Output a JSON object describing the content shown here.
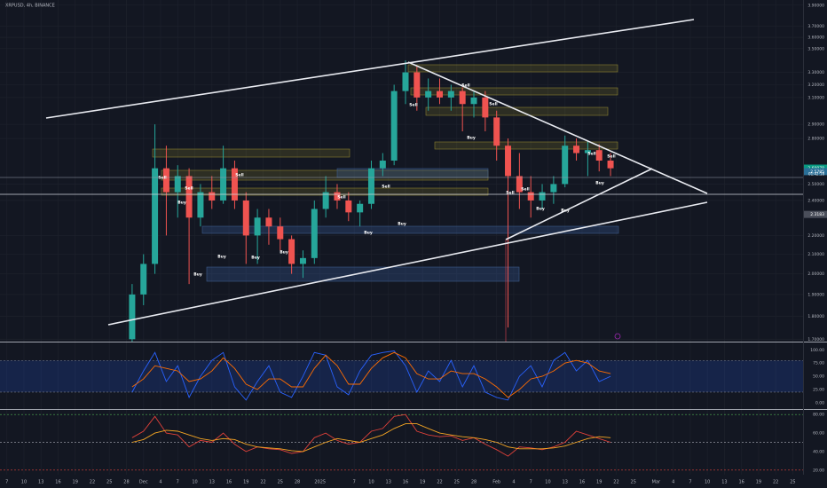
{
  "chart_data": [
    {
      "type": "candlestick",
      "title": "XRPUSD, 4h, BINANCE",
      "categories": [
        null,
        null,
        null,
        null,
        null,
        null,
        null,
        null,
        null,
        null,
        null,
        null,
        null,
        null,
        null,
        null,
        null,
        null,
        null,
        null,
        null,
        null,
        null,
        null,
        null,
        null,
        null,
        null,
        null,
        null,
        null,
        null,
        null,
        null,
        null,
        null,
        null,
        null,
        null,
        null,
        null,
        null,
        null
      ],
      "open": [
        1.7,
        1.9,
        2.05,
        2.6,
        2.45,
        2.55,
        2.3,
        2.45,
        2.4,
        2.6,
        2.4,
        2.2,
        2.3,
        2.25,
        2.18,
        2.05,
        2.08,
        2.35,
        2.45,
        2.4,
        2.33,
        2.38,
        2.6,
        2.65,
        3.15,
        3.3,
        3.1,
        3.15,
        3.1,
        3.15,
        3.05,
        3.1,
        2.95,
        2.75,
        2.55,
        2.45,
        2.4,
        2.45,
        2.5,
        2.75,
        2.7,
        2.72,
        2.65
      ],
      "high": [
        1.95,
        2.1,
        2.9,
        2.75,
        2.62,
        2.6,
        2.5,
        2.55,
        2.75,
        2.65,
        2.45,
        2.35,
        2.35,
        2.3,
        2.2,
        2.12,
        2.4,
        2.55,
        2.5,
        2.45,
        2.4,
        2.65,
        2.7,
        3.2,
        3.4,
        3.35,
        3.25,
        3.25,
        3.2,
        3.18,
        3.15,
        3.15,
        3.0,
        2.8,
        2.7,
        2.55,
        2.5,
        2.55,
        2.82,
        2.8,
        2.78,
        2.76,
        2.7
      ],
      "low": [
        1.65,
        1.85,
        2.0,
        2.2,
        2.3,
        1.95,
        2.25,
        2.35,
        2.38,
        2.35,
        2.05,
        2.05,
        2.15,
        2.12,
        2.0,
        1.98,
        2.05,
        2.3,
        2.35,
        2.28,
        2.25,
        2.35,
        2.55,
        2.62,
        3.05,
        3.0,
        3.0,
        3.05,
        3.0,
        2.85,
        2.95,
        2.85,
        2.65,
        1.75,
        2.35,
        2.3,
        2.35,
        2.38,
        2.48,
        2.65,
        2.55,
        2.58,
        2.55
      ],
      "close": [
        1.9,
        2.05,
        2.6,
        2.45,
        2.55,
        2.3,
        2.45,
        2.4,
        2.6,
        2.4,
        2.2,
        2.3,
        2.25,
        2.18,
        2.05,
        2.08,
        2.35,
        2.45,
        2.4,
        2.33,
        2.38,
        2.6,
        2.65,
        3.15,
        3.3,
        3.1,
        3.15,
        3.1,
        3.15,
        3.05,
        3.1,
        2.95,
        2.75,
        2.55,
        2.45,
        2.4,
        2.45,
        2.5,
        2.75,
        2.7,
        2.72,
        2.65,
        2.6
      ],
      "up_color": "#26a69a",
      "down_color": "#ef5350",
      "log_scale": true,
      "grid": true,
      "ylim": [
        1.69,
        3.95
      ],
      "yticks": [
        {
          "value": 3.9,
          "label": "3.90000"
        },
        {
          "value": 3.7,
          "label": "3.70000"
        },
        {
          "value": 3.6,
          "label": "3.60000"
        },
        {
          "value": 3.5,
          "label": "3.50000"
        },
        {
          "value": 3.3,
          "label": "3.30000"
        },
        {
          "value": 3.2,
          "label": "3.20000"
        },
        {
          "value": 3.1,
          "label": "3.10000"
        },
        {
          "value": 2.9,
          "label": "2.90000"
        },
        {
          "value": 2.8,
          "label": "2.80000"
        },
        {
          "value": 2.5,
          "label": "2.50000"
        },
        {
          "value": 2.4,
          "label": "2.40000"
        },
        {
          "value": 2.2,
          "label": "2.20000"
        },
        {
          "value": 2.1,
          "label": "2.10000"
        },
        {
          "value": 2.0,
          "label": "2.00000"
        },
        {
          "value": 1.9,
          "label": "1.90000"
        },
        {
          "value": 1.8,
          "label": "1.80000"
        },
        {
          "value": 1.7,
          "label": "1.70000"
        }
      ],
      "xlim": [
        -11.6,
        58.9
      ],
      "xticks": [
        {
          "value": -11,
          "label": "7"
        },
        {
          "value": -9.5,
          "label": "10"
        },
        {
          "value": -8,
          "label": "13"
        },
        {
          "value": -6.5,
          "label": "16"
        },
        {
          "value": -5,
          "label": "19"
        },
        {
          "value": -3.5,
          "label": "22"
        },
        {
          "value": -2,
          "label": "25"
        },
        {
          "value": -0.5,
          "label": "28"
        },
        {
          "value": 1,
          "label": "Dec"
        },
        {
          "value": 2.5,
          "label": "4"
        },
        {
          "value": 4,
          "label": "7"
        },
        {
          "value": 5.5,
          "label": "10"
        },
        {
          "value": 7,
          "label": "13"
        },
        {
          "value": 8.5,
          "label": "16"
        },
        {
          "value": 10,
          "label": "19"
        },
        {
          "value": 11.5,
          "label": "22"
        },
        {
          "value": 13,
          "label": "25"
        },
        {
          "value": 14.5,
          "label": "28"
        },
        {
          "value": 16.5,
          "label": "2025"
        },
        {
          "value": 19.5,
          "label": "7"
        },
        {
          "value": 21,
          "label": "10"
        },
        {
          "value": 22.5,
          "label": "13"
        },
        {
          "value": 24,
          "label": "16"
        },
        {
          "value": 25.5,
          "label": "19"
        },
        {
          "value": 27,
          "label": "22"
        },
        {
          "value": 28.5,
          "label": "25"
        },
        {
          "value": 30,
          "label": "28"
        },
        {
          "value": 32,
          "label": "Feb"
        },
        {
          "value": 33.5,
          "label": "4"
        },
        {
          "value": 35,
          "label": "7"
        },
        {
          "value": 36.5,
          "label": "10"
        },
        {
          "value": 38,
          "label": "13"
        },
        {
          "value": 39.5,
          "label": "16"
        },
        {
          "value": 41,
          "label": "19"
        },
        {
          "value": 42.5,
          "label": "22"
        },
        {
          "value": 44,
          "label": "25"
        },
        {
          "value": 46,
          "label": "Mar"
        },
        {
          "value": 47.5,
          "label": "4"
        },
        {
          "value": 49,
          "label": "7"
        },
        {
          "value": 50.5,
          "label": "10"
        },
        {
          "value": 52,
          "label": "13"
        },
        {
          "value": 53.5,
          "label": "16"
        },
        {
          "value": 55,
          "label": "19"
        },
        {
          "value": 56.5,
          "label": "22"
        },
        {
          "value": 58,
          "label": "25"
        }
      ],
      "price_markers": [
        {
          "value": 2.60078,
          "color": "#089981"
        },
        {
          "value": 2.5785,
          "color": "#2a6f97"
        },
        {
          "value": 2.3183,
          "color": "#4a4e5a"
        }
      ],
      "countdown": "01:42:18",
      "signals": [
        "Sell",
        "Buy",
        "Sell",
        "Sell",
        "Buy",
        "Buy",
        "Buy",
        "Buy",
        "Sell",
        "Buy",
        "Sell",
        "Buy",
        "Sell",
        "Sell",
        "Buy",
        "Sell",
        "Sell",
        "Sell",
        "Buy",
        "Buy",
        "Sell",
        "Buy",
        "Sell"
      ]
    },
    {
      "type": "line",
      "series": [
        {
          "name": "K",
          "color": "#2962ff",
          "values": [
            20,
            60,
            95,
            40,
            70,
            10,
            50,
            80,
            95,
            30,
            5,
            40,
            70,
            20,
            10,
            50,
            95,
            90,
            30,
            15,
            60,
            90,
            95,
            98,
            70,
            20,
            60,
            40,
            80,
            30,
            70,
            20,
            10,
            5,
            50,
            70,
            30,
            80,
            95,
            60,
            80,
            40,
            50
          ]
        },
        {
          "name": "D",
          "color": "#ff6d00",
          "values": [
            30,
            45,
            70,
            65,
            60,
            40,
            45,
            60,
            85,
            65,
            35,
            25,
            45,
            45,
            30,
            30,
            65,
            90,
            70,
            35,
            35,
            65,
            85,
            95,
            85,
            55,
            45,
            45,
            60,
            55,
            55,
            45,
            30,
            10,
            25,
            45,
            50,
            60,
            75,
            80,
            75,
            60,
            55
          ]
        }
      ],
      "ylim": [
        -12,
        114
      ],
      "yticks": [
        {
          "value": 100,
          "label": "100.00"
        },
        {
          "value": 75,
          "label": "75.00"
        },
        {
          "value": 50,
          "label": "50.00"
        },
        {
          "value": 25,
          "label": "25.00"
        },
        {
          "value": 0,
          "label": "0.00"
        }
      ],
      "band": [
        20,
        80
      ],
      "band_color": "rgba(41,98,255,0.18)"
    },
    {
      "type": "line",
      "series": [
        {
          "name": "RSI",
          "color": "#e0413a",
          "values": [
            55,
            62,
            78,
            60,
            58,
            45,
            52,
            50,
            60,
            48,
            40,
            45,
            43,
            42,
            38,
            40,
            55,
            60,
            52,
            48,
            50,
            62,
            65,
            78,
            80,
            62,
            58,
            56,
            57,
            52,
            55,
            48,
            42,
            35,
            45,
            44,
            42,
            45,
            50,
            62,
            58,
            54,
            50
          ]
        },
        {
          "name": "MA",
          "color": "#f5a623",
          "values": [
            50,
            53,
            60,
            63,
            62,
            58,
            54,
            52,
            54,
            53,
            48,
            45,
            44,
            43,
            41,
            40,
            45,
            50,
            54,
            52,
            50,
            54,
            58,
            65,
            70,
            70,
            65,
            60,
            58,
            56,
            55,
            53,
            50,
            45,
            43,
            43,
            43,
            44,
            46,
            50,
            54,
            56,
            55
          ]
        }
      ],
      "ylim": [
        15,
        85
      ],
      "yticks": [
        {
          "value": 80,
          "label": "80.00"
        },
        {
          "value": 60,
          "label": "60.00"
        },
        {
          "value": 40,
          "label": "40.00"
        },
        {
          "value": 20,
          "label": "20.00"
        }
      ],
      "levels": [
        {
          "value": 80,
          "color": "#4caf50"
        },
        {
          "value": 50,
          "color": "#d1d4dc"
        },
        {
          "value": 20,
          "color": "#e0413a"
        }
      ]
    }
  ]
}
